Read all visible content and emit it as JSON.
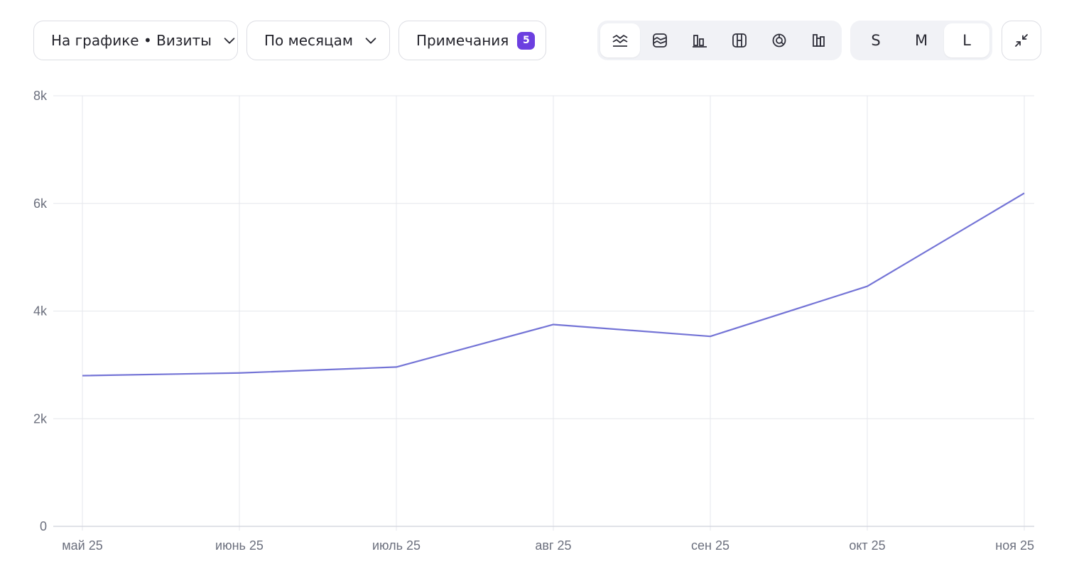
{
  "toolbar": {
    "metric_select": {
      "label": "На графике • Визиты"
    },
    "period_select": {
      "label": "По месяцам"
    },
    "notes_button": {
      "label": "Примечания",
      "count": "5"
    },
    "chart_types": [
      {
        "icon": "line-chart-icon",
        "active": true
      },
      {
        "icon": "area-stack-icon",
        "active": false
      },
      {
        "icon": "column-chart-icon",
        "active": false
      },
      {
        "icon": "bar-stack-icon",
        "active": false
      },
      {
        "icon": "pie-chart-icon",
        "active": false
      },
      {
        "icon": "histogram-icon",
        "active": false
      }
    ],
    "sizes": [
      {
        "label": "S",
        "active": false
      },
      {
        "label": "M",
        "active": false
      },
      {
        "label": "L",
        "active": true
      }
    ],
    "collapse_icon": "collapse-icon"
  },
  "colors": {
    "line": "#7474d6",
    "grid": "#e6e7ec",
    "badge": "#6c3fe0"
  },
  "chart_data": {
    "type": "line",
    "categories": [
      "май 25",
      "июнь 25",
      "июль 25",
      "авг 25",
      "сен 25",
      "окт 25",
      "ноя 25"
    ],
    "series": [
      {
        "values": [
          2800,
          2850,
          2960,
          3750,
          3530,
          4460,
          6190
        ]
      }
    ],
    "y_ticks": [
      "0",
      "2k",
      "4k",
      "6k",
      "8k"
    ],
    "ylim": [
      0,
      8000
    ],
    "grid": true
  }
}
